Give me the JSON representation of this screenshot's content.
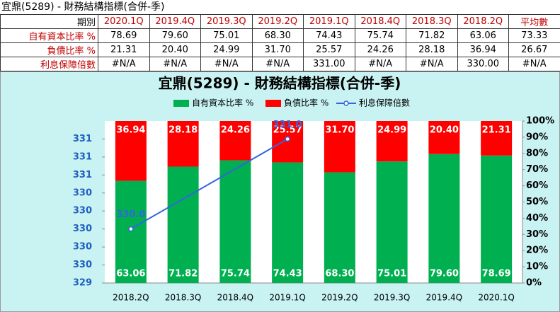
{
  "header": {
    "title": "宜鼎(5289) - 財務結構指標(合併-季)"
  },
  "table": {
    "header": [
      "期別",
      "2020.1Q",
      "2019.4Q",
      "2019.3Q",
      "2019.2Q",
      "2019.1Q",
      "2018.4Q",
      "2018.3Q",
      "2018.2Q",
      "平均數"
    ],
    "rows": [
      [
        "自有資本比率 %",
        "78.69",
        "79.60",
        "75.01",
        "68.30",
        "74.43",
        "75.74",
        "71.82",
        "63.06",
        "73.33"
      ],
      [
        "負債比率 %",
        "21.31",
        "20.40",
        "24.99",
        "31.70",
        "25.57",
        "24.26",
        "28.18",
        "36.94",
        "26.67"
      ],
      [
        "利息保障倍數",
        "#N/A",
        "#N/A",
        "#N/A",
        "#N/A",
        "331.00",
        "#N/A",
        "#N/A",
        "330.00",
        "#N/A"
      ]
    ]
  },
  "chart_data": {
    "type": "bar",
    "title": "宜鼎(5289) - 財務結構指標(合併-季)",
    "categories": [
      "2018.2Q",
      "2018.3Q",
      "2018.4Q",
      "2019.1Q",
      "2019.2Q",
      "2019.3Q",
      "2019.4Q",
      "2020.1Q"
    ],
    "series": [
      {
        "name": "自有資本比率 %",
        "color": "#00b050",
        "type": "stacked_bar",
        "axis": "y2",
        "values": [
          63.06,
          71.82,
          75.74,
          74.43,
          68.3,
          75.01,
          79.6,
          78.69
        ],
        "value_labels": [
          "63.06",
          "71.82",
          "75.74",
          "74.43",
          "68.30",
          "75.01",
          "79.60",
          "78.69"
        ]
      },
      {
        "name": "負債比率 %",
        "color": "#ff0000",
        "type": "stacked_bar",
        "axis": "y2",
        "values": [
          36.94,
          28.18,
          24.26,
          25.57,
          31.7,
          24.99,
          20.4,
          21.31
        ],
        "value_labels": [
          "36.94",
          "28.18",
          "24.26",
          "25.57",
          "31.70",
          "24.99",
          "20.40",
          "21.31"
        ]
      },
      {
        "name": "利息保障倍數",
        "color": "#3366dd",
        "type": "line",
        "values": [
          330,
          null,
          null,
          331,
          null,
          null,
          null,
          null
        ],
        "value_labels": [
          "330.0",
          null,
          null,
          "331.0",
          null,
          null,
          null,
          null
        ]
      }
    ],
    "ylim": [
      329.4,
      331.2
    ],
    "yticks": [
      {
        "value": 329.4,
        "label": "329"
      },
      {
        "value": 329.6,
        "label": "330"
      },
      {
        "value": 329.8,
        "label": "330"
      },
      {
        "value": 330.0,
        "label": "330"
      },
      {
        "value": 330.2,
        "label": "330"
      },
      {
        "value": 330.4,
        "label": "330"
      },
      {
        "value": 330.6,
        "label": "331"
      },
      {
        "value": 330.8,
        "label": "331"
      },
      {
        "value": 331.0,
        "label": "331"
      }
    ],
    "y2lim": [
      0,
      100
    ],
    "y2ticks": [
      {
        "value": 0,
        "label": "0%"
      },
      {
        "value": 10,
        "label": "10%"
      },
      {
        "value": 20,
        "label": "20%"
      },
      {
        "value": 30,
        "label": "30%"
      },
      {
        "value": 40,
        "label": "40%"
      },
      {
        "value": 50,
        "label": "50%"
      },
      {
        "value": 60,
        "label": "60%"
      },
      {
        "value": 70,
        "label": "70%"
      },
      {
        "value": 80,
        "label": "80%"
      },
      {
        "value": 90,
        "label": "90%"
      },
      {
        "value": 100,
        "label": "100%"
      }
    ]
  }
}
